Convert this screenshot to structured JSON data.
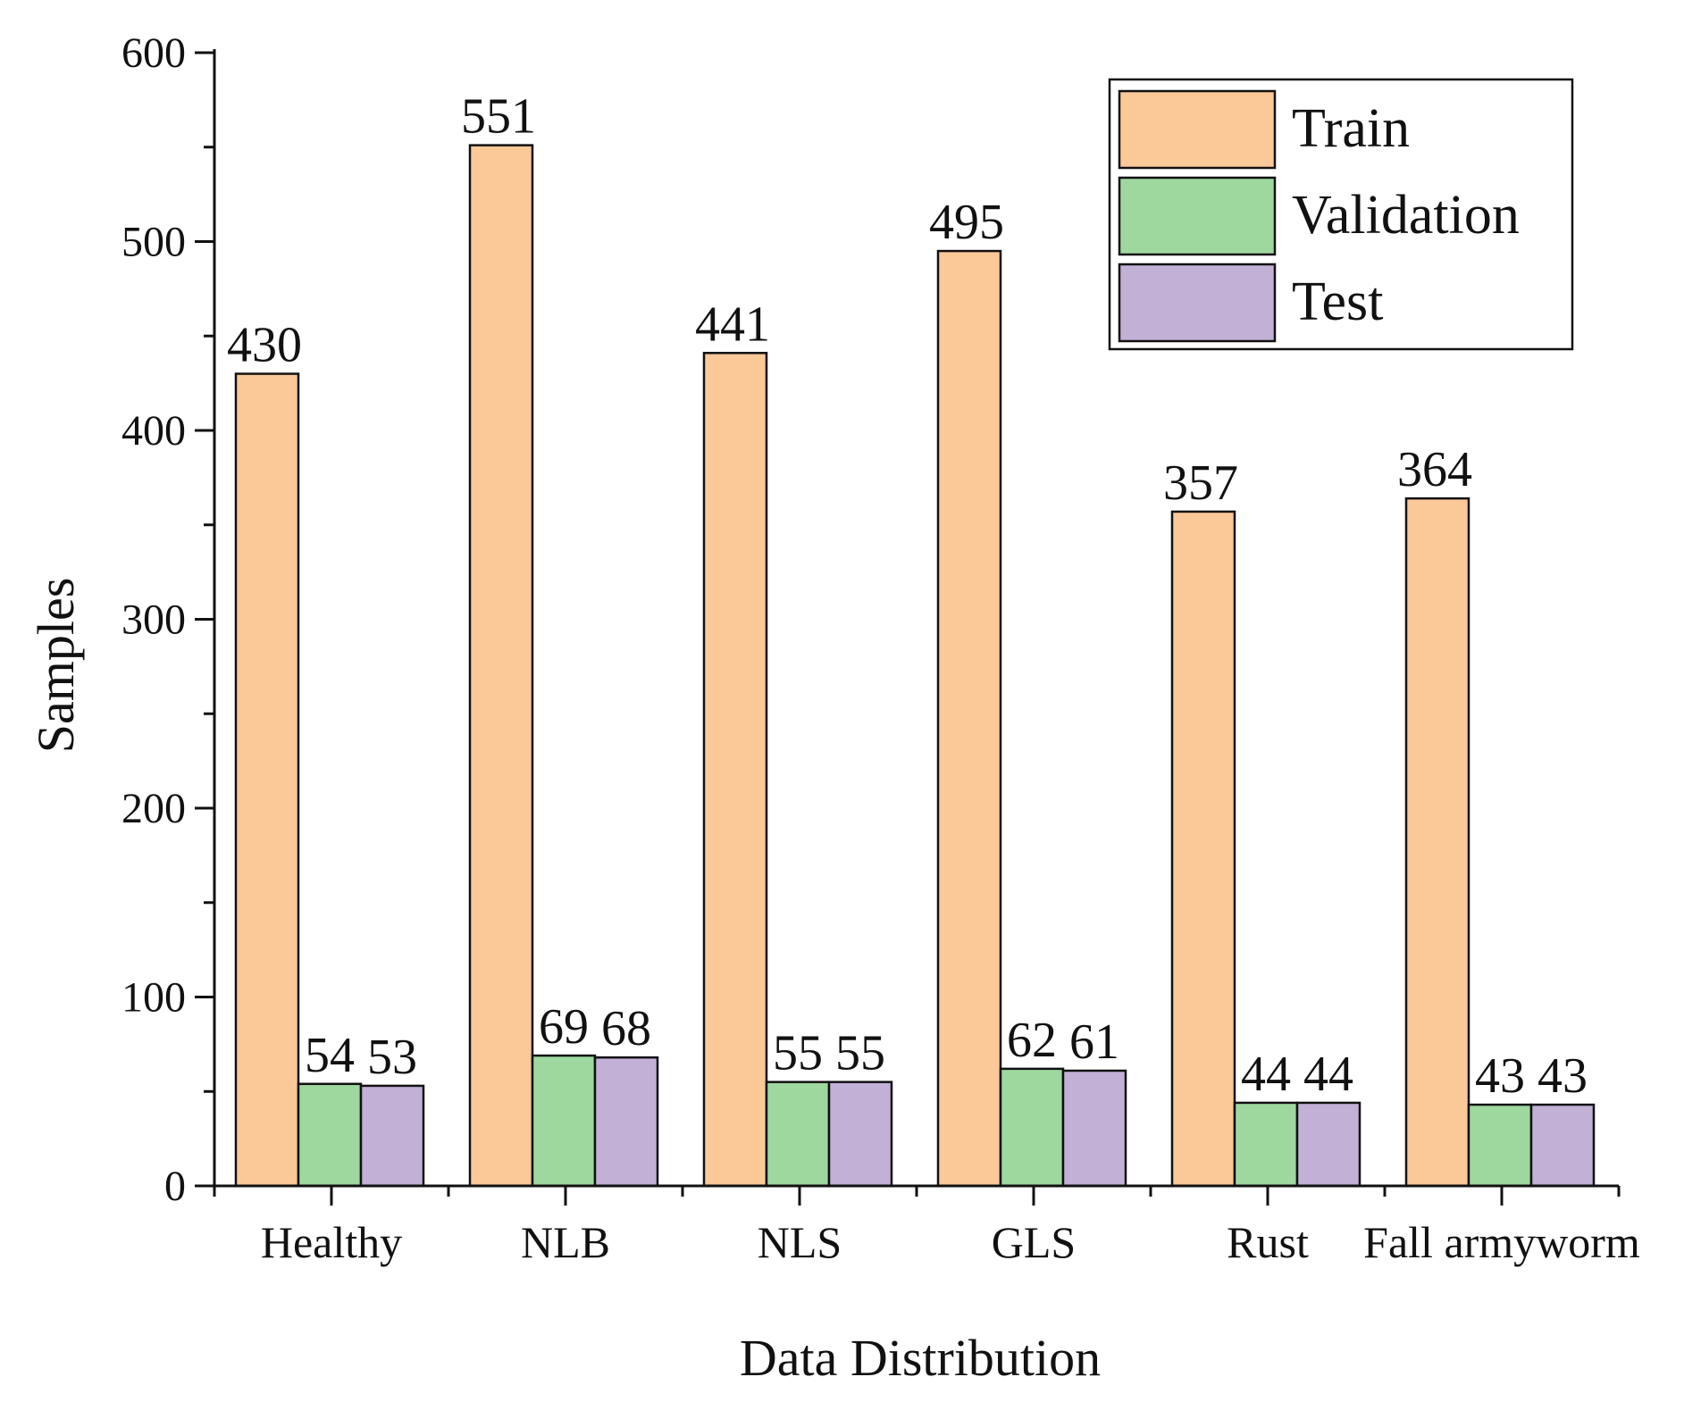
{
  "chart_data": {
    "type": "bar",
    "title": "",
    "xlabel": "Data Distribution",
    "ylabel": "Samples",
    "ylim": [
      0,
      600
    ],
    "y_ticks": [
      0,
      100,
      200,
      300,
      400,
      500,
      600
    ],
    "y_tick_labels": [
      "0",
      "100",
      "200",
      "300",
      "400",
      "500",
      "600"
    ],
    "categories": [
      "Healthy",
      "NLB",
      "NLS",
      "GLS",
      "Rust",
      "Fall armyworm"
    ],
    "series": [
      {
        "name": "Train",
        "color": "#FBC898",
        "values": [
          430,
          551,
          441,
          495,
          357,
          364
        ]
      },
      {
        "name": "Validation",
        "color": "#9FD89F",
        "values": [
          54,
          69,
          55,
          62,
          44,
          43
        ]
      },
      {
        "name": "Test",
        "color": "#C2B0D6",
        "values": [
          53,
          68,
          55,
          61,
          44,
          43
        ]
      }
    ],
    "grid": false,
    "legend_position": "top-right",
    "data_labels": true
  }
}
